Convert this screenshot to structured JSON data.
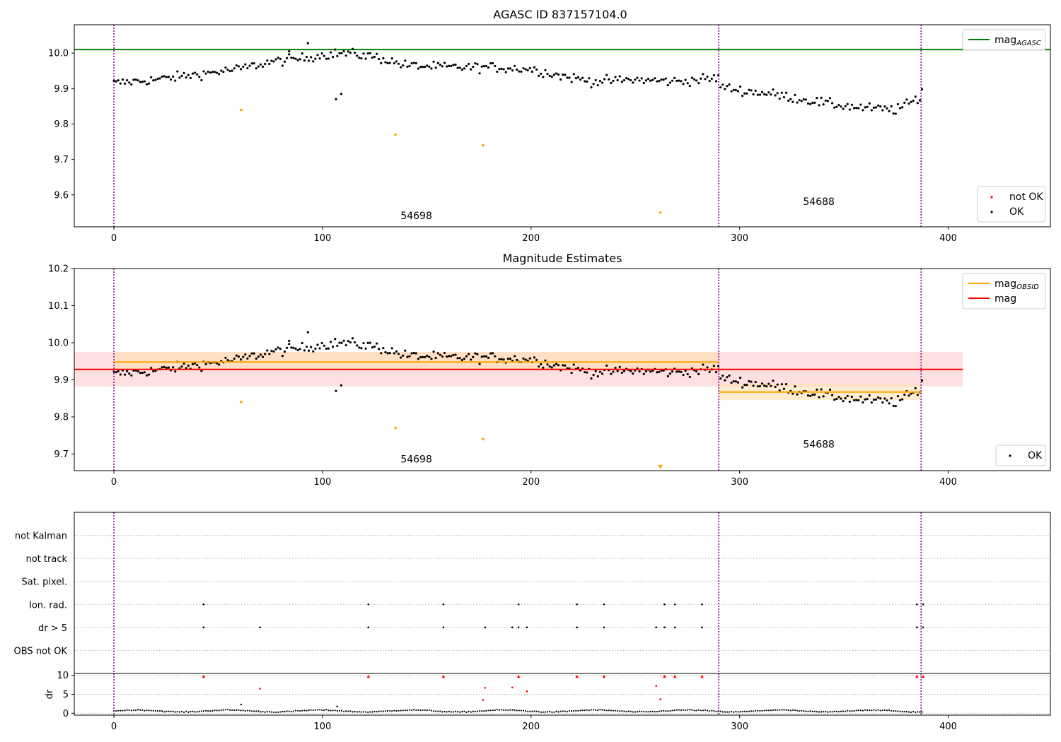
{
  "colors": {
    "agasc_line": "#008000",
    "ok": "#000000",
    "not_ok": "#ff0000",
    "orange": "#ffa500",
    "mag_line": "#ff0000",
    "obsid_boundary": "#800080"
  },
  "chart_data": [
    {
      "type": "scatter",
      "title": "AGASC ID 837157104.0",
      "xlabel": "",
      "ylabel": "",
      "xlim": [
        -19,
        449
      ],
      "ylim": [
        9.51,
        10.08
      ],
      "xticks": [
        0,
        100,
        200,
        300,
        400
      ],
      "yticks": [
        9.6,
        9.7,
        9.8,
        9.9,
        10.0
      ],
      "obsid_boundaries": [
        0,
        290,
        387
      ],
      "hlines": [
        {
          "name": "mag_AGASC",
          "y": 10.01,
          "color": "#008000"
        }
      ],
      "orange_points": [
        [
          61,
          9.84
        ],
        [
          135,
          9.77
        ],
        [
          177,
          9.74
        ],
        [
          262,
          9.55
        ]
      ],
      "annotations": [
        {
          "text": "54698",
          "x": 145,
          "y": 9.53
        },
        {
          "text": "54688",
          "x": 338,
          "y": 9.57
        }
      ],
      "legends": [
        {
          "position": "top-right",
          "entries": [
            {
              "label": "mag",
              "sub": "AGASC",
              "kind": "line",
              "color": "#008000"
            }
          ]
        },
        {
          "position": "bottom-right",
          "entries": [
            {
              "label": "not OK",
              "kind": "dot",
              "color": "#ff0000"
            },
            {
              "label": "OK",
              "kind": "dot",
              "color": "#000000"
            }
          ]
        }
      ]
    },
    {
      "type": "scatter",
      "title": "Magnitude Estimates",
      "xlabel": "",
      "ylabel": "",
      "xlim": [
        -19,
        449
      ],
      "ylim": [
        9.655,
        10.2
      ],
      "xticks": [
        0,
        100,
        200,
        300,
        400
      ],
      "yticks": [
        9.7,
        9.8,
        9.9,
        10.0,
        10.1,
        10.2
      ],
      "obsid_boundaries": [
        0,
        290,
        387
      ],
      "bands": [
        {
          "x0": -19,
          "x1": 407,
          "y0": 9.882,
          "y1": 9.975,
          "color": "#ffcccc",
          "opacity": 0.6
        },
        {
          "x0": 0,
          "x1": 290,
          "y0": 9.927,
          "y1": 9.975,
          "color": "#ffe0b3",
          "opacity": 0.6
        },
        {
          "x0": 290,
          "x1": 387,
          "y0": 9.845,
          "y1": 9.89,
          "color": "#ffe0b3",
          "opacity": 0.6
        }
      ],
      "segments": [
        {
          "name": "mag_OBSID",
          "x0": 0,
          "x1": 290,
          "y": 9.948,
          "color": "#ffa500"
        },
        {
          "name": "mag_OBSID",
          "x0": 290,
          "x1": 387,
          "y": 9.867,
          "color": "#ffa500"
        },
        {
          "name": "mag",
          "x0": -19,
          "x1": 407,
          "y": 9.928,
          "color": "#ff0000"
        }
      ],
      "orange_points": [
        [
          61,
          9.84
        ],
        [
          135,
          9.77
        ],
        [
          177,
          9.74
        ]
      ],
      "orange_triangle": [
        262,
        9.665
      ],
      "annotations": [
        {
          "text": "54698",
          "x": 145,
          "y": 9.675
        },
        {
          "text": "54688",
          "x": 338,
          "y": 9.715
        }
      ],
      "legends": [
        {
          "position": "top-right",
          "entries": [
            {
              "label": "mag",
              "sub": "OBSID",
              "kind": "line",
              "color": "#ffa500"
            },
            {
              "label": "mag",
              "kind": "line",
              "color": "#ff0000"
            }
          ]
        },
        {
          "position": "bottom-right",
          "entries": [
            {
              "label": "OK",
              "kind": "dot",
              "color": "#000000"
            }
          ]
        }
      ]
    },
    {
      "type": "scatter",
      "title": "",
      "xlim": [
        -19,
        449
      ],
      "categories": [
        "not Kalman",
        "not track",
        "Sat. pixel.",
        "Ion. rad.",
        "dr > 5",
        "OBS not OK"
      ],
      "obsid_boundaries": [
        0,
        290,
        387
      ],
      "flags": {
        "Ion. rad.": [
          43,
          122,
          158,
          194,
          222,
          235,
          264,
          269,
          282,
          385,
          388
        ],
        "dr > 5": [
          43,
          70,
          122,
          158,
          178,
          191,
          194,
          198,
          222,
          235,
          260,
          264,
          269,
          282,
          385,
          388
        ]
      }
    },
    {
      "type": "scatter",
      "title": "",
      "xlabel": "",
      "ylabel": "dr",
      "xlim": [
        -19,
        449
      ],
      "ylim": [
        -0.5,
        10.5
      ],
      "xticks": [
        0,
        100,
        200,
        300,
        400
      ],
      "yticks": [
        0,
        5,
        10
      ],
      "obsid_boundaries": [
        0,
        290,
        387
      ],
      "red_points": [
        [
          43,
          9.7
        ],
        [
          70,
          6.5
        ],
        [
          122,
          9.7
        ],
        [
          158,
          9.7
        ],
        [
          177,
          3.5
        ],
        [
          178,
          6.7
        ],
        [
          191,
          6.8
        ],
        [
          194,
          9.7
        ],
        [
          198,
          5.8
        ],
        [
          222,
          9.7
        ],
        [
          235,
          9.7
        ],
        [
          260,
          7.2
        ],
        [
          262,
          3.7
        ],
        [
          264,
          9.7
        ],
        [
          269,
          9.7
        ],
        [
          282,
          9.7
        ],
        [
          385,
          9.7
        ],
        [
          388,
          9.7
        ]
      ],
      "black_points_baseline": 0.6,
      "black_points_extra": [
        [
          61,
          2.3
        ],
        [
          107,
          1.8
        ]
      ]
    }
  ]
}
